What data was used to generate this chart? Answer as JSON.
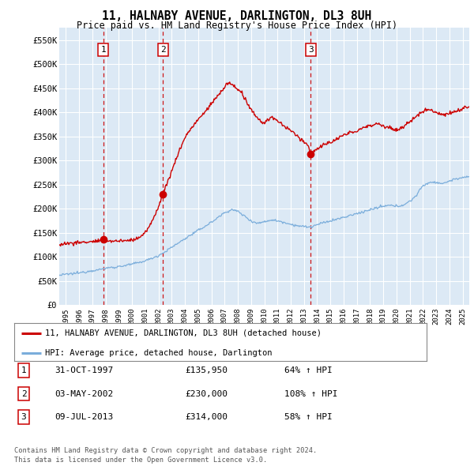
{
  "title": "11, HALNABY AVENUE, DARLINGTON, DL3 8UH",
  "subtitle": "Price paid vs. HM Land Registry's House Price Index (HPI)",
  "property_label": "11, HALNABY AVENUE, DARLINGTON, DL3 8UH (detached house)",
  "hpi_label": "HPI: Average price, detached house, Darlington",
  "sale_points": [
    {
      "date_num": 1997.83,
      "price": 135950,
      "label": "1"
    },
    {
      "date_num": 2002.33,
      "price": 230000,
      "label": "2"
    },
    {
      "date_num": 2013.52,
      "price": 314000,
      "label": "3"
    }
  ],
  "table_rows": [
    {
      "num": "1",
      "date": "31-OCT-1997",
      "price": "£135,950",
      "change": "64% ↑ HPI"
    },
    {
      "num": "2",
      "date": "03-MAY-2002",
      "price": "£230,000",
      "change": "108% ↑ HPI"
    },
    {
      "num": "3",
      "date": "09-JUL-2013",
      "price": "£314,000",
      "change": "58% ↑ HPI"
    }
  ],
  "footer_line1": "Contains HM Land Registry data © Crown copyright and database right 2024.",
  "footer_line2": "This data is licensed under the Open Government Licence v3.0.",
  "property_color": "#cc0000",
  "hpi_color": "#7aaddb",
  "vline_color": "#cc0000",
  "plot_bg_color": "#dce9f5",
  "ylim": [
    0,
    575000
  ],
  "xlim": [
    1994.5,
    2025.5
  ],
  "yticks": [
    0,
    50000,
    100000,
    150000,
    200000,
    250000,
    300000,
    350000,
    400000,
    450000,
    500000,
    550000
  ],
  "ytick_labels": [
    "£0",
    "£50K",
    "£100K",
    "£150K",
    "£200K",
    "£250K",
    "£300K",
    "£350K",
    "£400K",
    "£450K",
    "£500K",
    "£550K"
  ],
  "xticks": [
    1995,
    1996,
    1997,
    1998,
    1999,
    2000,
    2001,
    2002,
    2003,
    2004,
    2005,
    2006,
    2007,
    2008,
    2009,
    2010,
    2011,
    2012,
    2013,
    2014,
    2015,
    2016,
    2017,
    2018,
    2019,
    2020,
    2021,
    2022,
    2023,
    2024,
    2025
  ]
}
